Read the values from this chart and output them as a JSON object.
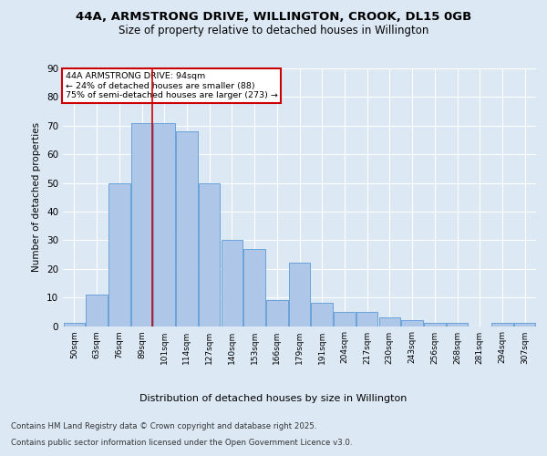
{
  "title1": "44A, ARMSTRONG DRIVE, WILLINGTON, CROOK, DL15 0GB",
  "title2": "Size of property relative to detached houses in Willington",
  "xlabel": "Distribution of detached houses by size in Willington",
  "ylabel": "Number of detached properties",
  "categories": [
    "50sqm",
    "63sqm",
    "76sqm",
    "89sqm",
    "101sqm",
    "114sqm",
    "127sqm",
    "140sqm",
    "153sqm",
    "166sqm",
    "179sqm",
    "191sqm",
    "204sqm",
    "217sqm",
    "230sqm",
    "243sqm",
    "256sqm",
    "268sqm",
    "281sqm",
    "294sqm",
    "307sqm"
  ],
  "values": [
    1,
    11,
    50,
    71,
    71,
    68,
    50,
    30,
    27,
    9,
    22,
    8,
    5,
    5,
    3,
    2,
    1,
    1,
    0,
    1,
    1
  ],
  "bar_color": "#aec6e8",
  "bar_edge_color": "#5b9bd5",
  "vline_x_index": 3,
  "vline_color": "#cc0000",
  "annotation_text": "44A ARMSTRONG DRIVE: 94sqm\n← 24% of detached houses are smaller (88)\n75% of semi-detached houses are larger (273) →",
  "annotation_box_color": "#ffffff",
  "annotation_box_edge": "#cc0000",
  "bg_color": "#dce9f5",
  "plot_bg_color": "#dce9f5",
  "grid_color": "#ffffff",
  "footnote1": "Contains HM Land Registry data © Crown copyright and database right 2025.",
  "footnote2": "Contains public sector information licensed under the Open Government Licence v3.0.",
  "ylim": [
    0,
    90
  ],
  "yticks": [
    0,
    10,
    20,
    30,
    40,
    50,
    60,
    70,
    80,
    90
  ]
}
